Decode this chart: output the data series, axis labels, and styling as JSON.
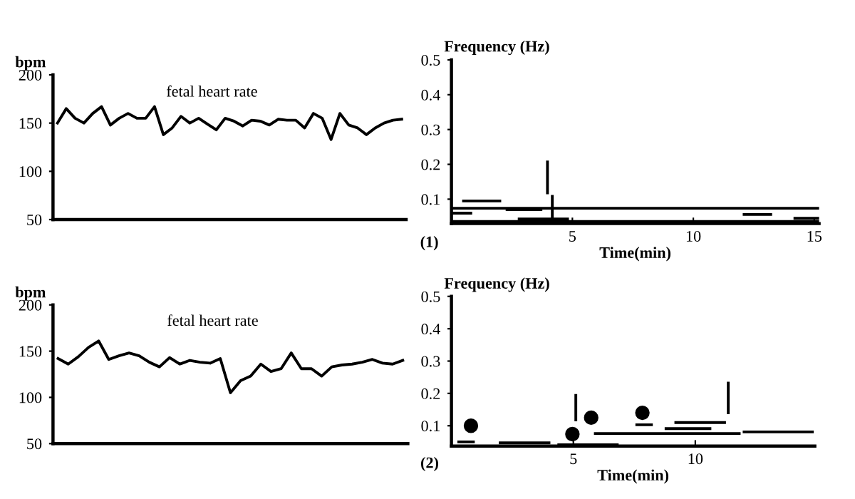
{
  "chart_data": [
    {
      "type": "line",
      "title": "fetal heart rate",
      "ylabel": "bpm",
      "ylim": [
        50,
        200
      ],
      "yticks": [
        50,
        100,
        150,
        200
      ],
      "tick_labels": "y",
      "grid": false,
      "categories": [
        null,
        null,
        null,
        null,
        null,
        null,
        null,
        null,
        null,
        null,
        null,
        null,
        null,
        null,
        null,
        null,
        null,
        null,
        null,
        null,
        null,
        null,
        null,
        null,
        null,
        null,
        null,
        null,
        null,
        null,
        null,
        null,
        null,
        null,
        null,
        null,
        null,
        null,
        null,
        null
      ],
      "series": [
        {
          "color": "#000000",
          "values": [
            150,
            165,
            155,
            150,
            160,
            167,
            148,
            155,
            160,
            155,
            155,
            167,
            138,
            145,
            157,
            150,
            155,
            149,
            143,
            155,
            152,
            147,
            153,
            152,
            148,
            154,
            153,
            153,
            145,
            160,
            155,
            133,
            160,
            148,
            145,
            138,
            145,
            150,
            153,
            154
          ]
        }
      ]
    },
    {
      "type": "line",
      "ylabel": "Frequency (Hz)",
      "xlabel": "Time(min)",
      "annotations": [
        "(1)"
      ],
      "xlim": [
        0,
        15.2
      ],
      "xticks": [
        5,
        10,
        15
      ],
      "ylim": [
        0.03,
        0.5
      ],
      "yticks": [
        0.1,
        0.2,
        0.3,
        0.4,
        0.5
      ],
      "grid": false,
      "series": [
        {
          "color": "#000000",
          "x": [
            0,
            15.2
          ],
          "values": [
            0.074,
            0.074
          ]
        },
        {
          "color": "#000000",
          "x": [
            0,
            15.2
          ],
          "values": [
            0.036,
            0.036
          ]
        },
        {
          "color": "#000000",
          "x": [
            0.5,
            2.0
          ],
          "values": [
            0.095,
            0.095
          ]
        },
        {
          "color": "#000000",
          "x": [
            0,
            0.8
          ],
          "values": [
            0.06,
            0.06
          ]
        },
        {
          "color": "#000000",
          "x": [
            2.3,
            3.7
          ],
          "values": [
            0.07,
            0.07
          ]
        },
        {
          "color": "#000000",
          "x": [
            2.8,
            4.8
          ],
          "values": [
            0.043,
            0.043
          ]
        },
        {
          "color": "#000000",
          "x": [
            12.1,
            13.2
          ],
          "values": [
            0.056,
            0.056
          ]
        },
        {
          "color": "#000000",
          "x": [
            14.2,
            15.2
          ],
          "values": [
            0.045,
            0.045
          ]
        },
        {
          "color": "#000000",
          "x": [
            3.97,
            3.97
          ],
          "values": [
            0.207,
            0.118
          ]
        },
        {
          "color": "#000000",
          "x": [
            4.17,
            4.17
          ],
          "values": [
            0.108,
            0.04
          ]
        }
      ]
    },
    {
      "type": "line",
      "title": "fetal heart rate",
      "ylabel": "bpm",
      "ylim": [
        50,
        200
      ],
      "yticks": [
        50,
        100,
        150,
        200
      ],
      "tick_labels": "y",
      "grid": false,
      "categories": [
        null,
        null,
        null,
        null,
        null,
        null,
        null,
        null,
        null,
        null,
        null,
        null,
        null,
        null,
        null,
        null,
        null,
        null,
        null,
        null,
        null,
        null,
        null,
        null,
        null,
        null,
        null,
        null,
        null,
        null,
        null,
        null,
        null,
        null,
        null
      ],
      "series": [
        {
          "color": "#000000",
          "values": [
            142,
            136,
            144,
            154,
            161,
            141,
            145,
            148,
            145,
            138,
            133,
            143,
            136,
            140,
            138,
            137,
            142,
            105,
            118,
            123,
            136,
            128,
            131,
            148,
            131,
            131,
            123,
            133,
            135,
            136,
            138,
            141,
            137,
            136,
            140
          ]
        }
      ]
    },
    {
      "type": "line",
      "ylabel": "Frequency (Hz)",
      "xlabel": "Time(min)",
      "annotations": [
        "(2)"
      ],
      "xlim": [
        0,
        14.9
      ],
      "xticks": [
        5,
        10
      ],
      "ylim": [
        0.037,
        0.5
      ],
      "yticks": [
        0.1,
        0.2,
        0.3,
        0.4,
        0.5
      ],
      "grid": false,
      "series": [
        {
          "color": "#000000",
          "x": [
            0.3,
            0.9
          ],
          "values": [
            0.05,
            0.05
          ]
        },
        {
          "color": "#000000",
          "x": [
            2.0,
            4.0
          ],
          "values": [
            0.047,
            0.047
          ]
        },
        {
          "color": "#000000",
          "x": [
            4.4,
            6.8
          ],
          "values": [
            0.041,
            0.041
          ]
        },
        {
          "color": "#000000",
          "x": [
            5.9,
            11.8
          ],
          "values": [
            0.076,
            0.076
          ]
        },
        {
          "color": "#000000",
          "x": [
            12.0,
            14.8
          ],
          "values": [
            0.081,
            0.081
          ]
        },
        {
          "color": "#000000",
          "x": [
            7.6,
            8.2
          ],
          "values": [
            0.103,
            0.103
          ]
        },
        {
          "color": "#000000",
          "x": [
            8.8,
            10.6
          ],
          "values": [
            0.091,
            0.091
          ]
        },
        {
          "color": "#000000",
          "x": [
            9.2,
            11.2
          ],
          "values": [
            0.11,
            0.11
          ]
        },
        {
          "color": "#000000",
          "x": [
            5.1,
            5.1
          ],
          "values": [
            0.194,
            0.118
          ]
        },
        {
          "color": "#000000",
          "x": [
            11.35,
            11.35
          ],
          "values": [
            0.232,
            0.14
          ]
        },
        {
          "type": "scatter",
          "marker": "circle",
          "color": "#000000",
          "x": [
            0.8,
            4.96,
            5.73,
            7.83
          ],
          "values": [
            0.1,
            0.074,
            0.125,
            0.14
          ]
        }
      ]
    }
  ]
}
